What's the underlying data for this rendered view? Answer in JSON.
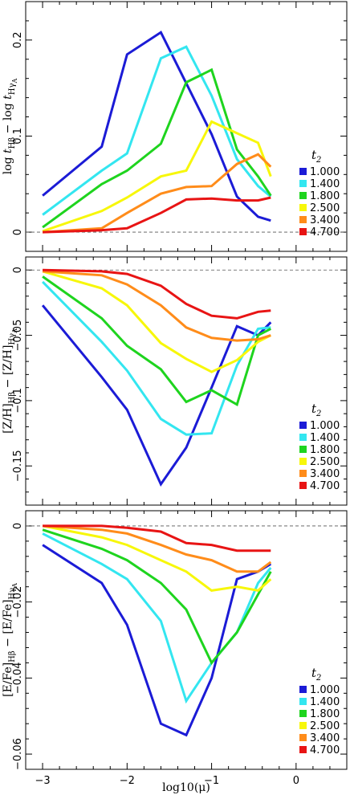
{
  "chart_data": [
    {
      "type": "line",
      "ylabel": "log t_Hβ − log t_HγA",
      "xlabel": "",
      "xlim": [
        -3.2,
        0.6
      ],
      "ylim": [
        -0.02,
        0.24
      ],
      "yticks": [
        0,
        0.1,
        0.2
      ],
      "ytick_labels": [
        "0",
        "0.1",
        "0.2"
      ],
      "zero_line": true,
      "legend": {
        "title": "t2",
        "position": "right"
      },
      "x": [
        -3.0,
        -2.3,
        -2.0,
        -1.6,
        -1.3,
        -1.0,
        -0.7,
        -0.45,
        -0.3
      ],
      "series": [
        {
          "name": "1.000",
          "color": "#1b1bd6",
          "values": [
            0.038,
            0.089,
            0.185,
            0.208,
            0.155,
            0.102,
            0.037,
            0.016,
            0.012
          ]
        },
        {
          "name": "1.400",
          "color": "#33e6f0",
          "values": [
            0.018,
            0.064,
            0.082,
            0.181,
            0.193,
            0.142,
            0.076,
            0.048,
            0.037
          ]
        },
        {
          "name": "1.800",
          "color": "#1ed41e",
          "values": [
            0.005,
            0.05,
            0.064,
            0.092,
            0.156,
            0.169,
            0.086,
            0.058,
            0.038
          ]
        },
        {
          "name": "2.500",
          "color": "#f7f70a",
          "values": [
            0.001,
            0.022,
            0.036,
            0.058,
            0.064,
            0.115,
            0.103,
            0.093,
            0.058
          ]
        },
        {
          "name": "3.400",
          "color": "#ff8c1a",
          "values": [
            0.0,
            0.004,
            0.02,
            0.04,
            0.047,
            0.048,
            0.071,
            0.081,
            0.068
          ]
        },
        {
          "name": "4.700",
          "color": "#e81414",
          "values": [
            0.0,
            0.002,
            0.004,
            0.02,
            0.034,
            0.035,
            0.033,
            0.033,
            0.036
          ]
        }
      ]
    },
    {
      "type": "line",
      "ylabel": "[Z/H]_Hβ − [Z/H]_HγA",
      "xlabel": "",
      "xlim": [
        -3.2,
        0.6
      ],
      "ylim": [
        -0.18,
        0.01
      ],
      "yticks": [
        0,
        -0.05,
        -0.1,
        -0.15
      ],
      "ytick_labels": [
        "0",
        "−0.05",
        "−0.1",
        "−0.15"
      ],
      "zero_line": true,
      "legend": {
        "title": "t2",
        "position": "right"
      },
      "x": [
        -3.0,
        -2.3,
        -2.0,
        -1.6,
        -1.3,
        -1.0,
        -0.7,
        -0.45,
        -0.3
      ],
      "series": [
        {
          "name": "1.000",
          "color": "#1b1bd6",
          "values": [
            -0.027,
            -0.082,
            -0.107,
            -0.164,
            -0.136,
            -0.09,
            -0.043,
            -0.05,
            -0.04
          ]
        },
        {
          "name": "1.400",
          "color": "#33e6f0",
          "values": [
            -0.009,
            -0.055,
            -0.077,
            -0.114,
            -0.126,
            -0.125,
            -0.073,
            -0.045,
            -0.044
          ]
        },
        {
          "name": "1.800",
          "color": "#1ed41e",
          "values": [
            -0.005,
            -0.037,
            -0.058,
            -0.076,
            -0.101,
            -0.092,
            -0.103,
            -0.05,
            -0.045
          ]
        },
        {
          "name": "2.500",
          "color": "#f7f70a",
          "values": [
            -0.001,
            -0.014,
            -0.027,
            -0.056,
            -0.068,
            -0.078,
            -0.069,
            -0.055,
            -0.05
          ]
        },
        {
          "name": "3.400",
          "color": "#ff8c1a",
          "values": [
            -0.001,
            -0.004,
            -0.011,
            -0.027,
            -0.044,
            -0.052,
            -0.054,
            -0.053,
            -0.05
          ]
        },
        {
          "name": "4.700",
          "color": "#e81414",
          "values": [
            0.0,
            -0.001,
            -0.003,
            -0.012,
            -0.026,
            -0.035,
            -0.037,
            -0.032,
            -0.031
          ]
        }
      ]
    },
    {
      "type": "line",
      "ylabel": "[E/Fe]_Hβ − [E/Fe]_HγA",
      "xlabel": "log10(μ)",
      "xlim": [
        -3.2,
        0.6
      ],
      "ylim": [
        -0.064,
        0.004
      ],
      "xticks": [
        -3,
        -2,
        -1,
        0
      ],
      "xtick_labels": [
        "−3",
        "−2",
        "−1",
        "0"
      ],
      "yticks": [
        0,
        -0.02,
        -0.04,
        -0.06
      ],
      "ytick_labels": [
        "0",
        "−0.02",
        "−0.04",
        "−0.06"
      ],
      "zero_line": true,
      "legend": {
        "title": "t2",
        "position": "right"
      },
      "x": [
        -3.0,
        -2.3,
        -2.0,
        -1.6,
        -1.3,
        -1.0,
        -0.7,
        -0.45,
        -0.3
      ],
      "series": [
        {
          "name": "1.000",
          "color": "#1b1bd6",
          "values": [
            -0.005,
            -0.015,
            -0.026,
            -0.052,
            -0.055,
            -0.04,
            -0.014,
            -0.012,
            -0.01
          ]
        },
        {
          "name": "1.400",
          "color": "#33e6f0",
          "values": [
            -0.002,
            -0.01,
            -0.014,
            -0.025,
            -0.046,
            -0.036,
            -0.028,
            -0.015,
            -0.011
          ]
        },
        {
          "name": "1.800",
          "color": "#1ed41e",
          "values": [
            -0.001,
            -0.006,
            -0.009,
            -0.015,
            -0.022,
            -0.036,
            -0.028,
            -0.018,
            -0.012
          ]
        },
        {
          "name": "2.500",
          "color": "#f7f70a",
          "values": [
            0.0,
            -0.003,
            -0.005,
            -0.009,
            -0.012,
            -0.017,
            -0.016,
            -0.017,
            -0.014
          ]
        },
        {
          "name": "3.400",
          "color": "#ff8c1a",
          "values": [
            0.0,
            -0.001,
            -0.002,
            -0.005,
            -0.0075,
            -0.009,
            -0.012,
            -0.012,
            -0.0095
          ]
        },
        {
          "name": "4.700",
          "color": "#e81414",
          "values": [
            0.0,
            0.0,
            -0.0005,
            -0.0015,
            -0.0045,
            -0.005,
            -0.0065,
            -0.0065,
            -0.0065
          ]
        }
      ]
    }
  ]
}
